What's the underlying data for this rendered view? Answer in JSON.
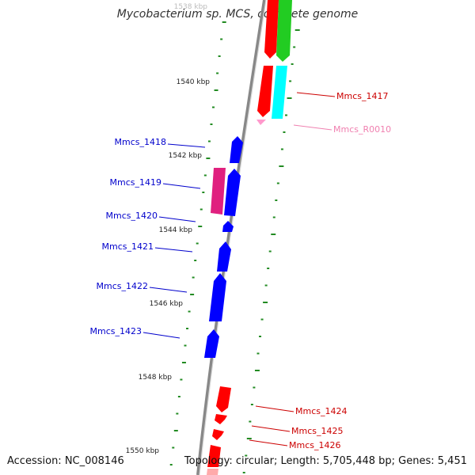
{
  "title": "Mycobacterium sp. MCS, complete genome",
  "accession": "Accession: NC_008146",
  "topology": "Topology: circular; Length: 5,705,448 bp; Genes: 5,451",
  "colors": {
    "backbone": "#888888",
    "tick": "#228b22",
    "reverse_gene": "#0000ff",
    "forward_gene": "#ff0000",
    "pink_gene": "#e0207f",
    "green_gene": "#22cc22",
    "cyan_gene": "#00ffff",
    "rna": "#ff99cc"
  },
  "kbp_labels": [
    "1538 kbp",
    "1540 kbp",
    "1542 kbp",
    "1544 kbp",
    "1546 kbp",
    "1548 kbp",
    "1550 kbp"
  ],
  "gene_labels": [
    {
      "text": "Mmcs_1417",
      "color": "#cc0000"
    },
    {
      "text": "Mmcs_R0010",
      "color": "#f080b0"
    },
    {
      "text": "Mmcs_1418",
      "color": "#0000cc"
    },
    {
      "text": "Mmcs_1419",
      "color": "#0000cc"
    },
    {
      "text": "Mmcs_1420",
      "color": "#0000cc"
    },
    {
      "text": "Mmcs_1421",
      "color": "#0000cc"
    },
    {
      "text": "Mmcs_1422",
      "color": "#0000cc"
    },
    {
      "text": "Mmcs_1423",
      "color": "#0000cc"
    },
    {
      "text": "Mmcs_1424",
      "color": "#cc0000"
    },
    {
      "text": "Mmcs_1425",
      "color": "#cc0000"
    },
    {
      "text": "Mmcs_1426",
      "color": "#cc0000"
    }
  ]
}
